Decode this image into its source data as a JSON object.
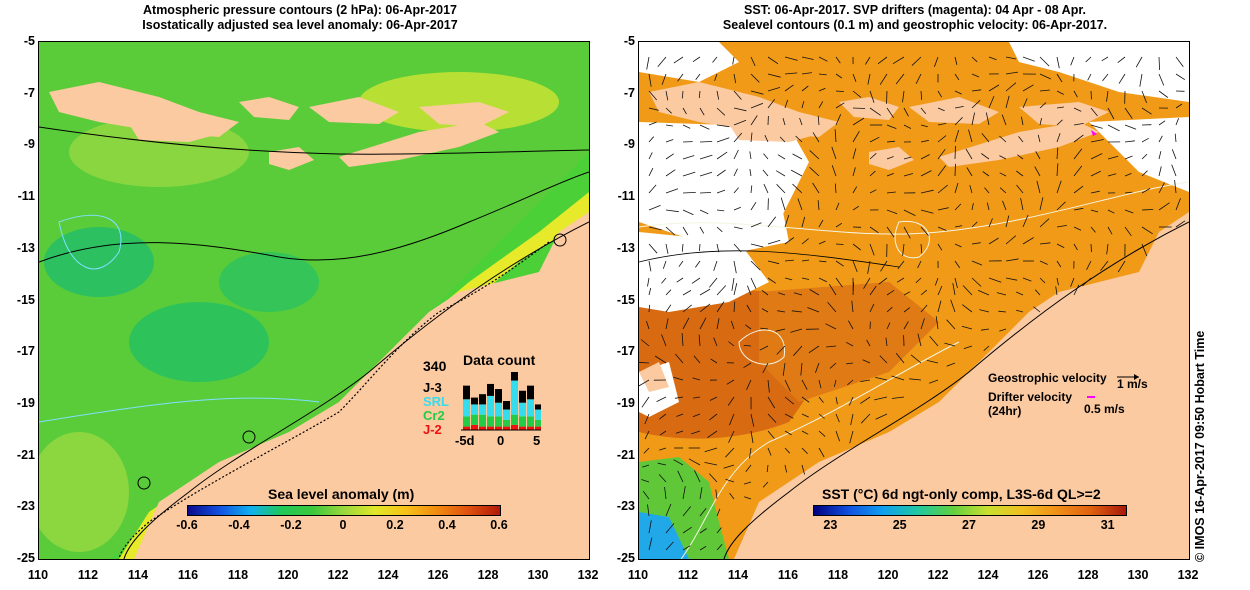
{
  "left_panel": {
    "title_line1": "Atmospheric pressure contours (2 hPa): 06-Apr-2017",
    "title_line2": "Isostatically adjusted sea level anomaly: 06-Apr-2017",
    "y_ticks": [
      "-5",
      "-7",
      "-9",
      "-11",
      "-13",
      "-15",
      "-17",
      "-19",
      "-21",
      "-23",
      "-25"
    ],
    "x_ticks": [
      "110",
      "112",
      "114",
      "116",
      "118",
      "120",
      "122",
      "124",
      "126",
      "128",
      "130",
      "132"
    ],
    "colorbar": {
      "title": "Sea level anomaly (m)",
      "tick_labels": [
        "-0.6",
        "-0.4",
        "-0.2",
        "0",
        "0.2",
        "0.4",
        "0.6"
      ],
      "range": [
        -0.6,
        0.6
      ]
    },
    "data_count": {
      "title": "Data count",
      "max_label": "340",
      "series": [
        {
          "name": "J-3",
          "color": "#000000"
        },
        {
          "name": "SRL",
          "color": "#33ddee"
        },
        {
          "name": "Cr2",
          "color": "#22cc44"
        },
        {
          "name": "J-2",
          "color": "#ee1111"
        }
      ],
      "x_labels": [
        "-5d",
        "0",
        "5"
      ],
      "bars": [
        {
          "J-2": 20,
          "Cr2": 60,
          "SRL": 100,
          "J-3": 80
        },
        {
          "J-2": 30,
          "Cr2": 60,
          "SRL": 60,
          "J-3": 40
        },
        {
          "J-2": 20,
          "Cr2": 70,
          "SRL": 60,
          "J-3": 60
        },
        {
          "J-2": 20,
          "Cr2": 60,
          "SRL": 120,
          "J-3": 70
        },
        {
          "J-2": 20,
          "Cr2": 60,
          "SRL": 80,
          "J-3": 80
        },
        {
          "J-2": 20,
          "Cr2": 40,
          "SRL": 60,
          "J-3": 50
        },
        {
          "J-2": 30,
          "Cr2": 60,
          "SRL": 200,
          "J-3": 50
        },
        {
          "J-2": 20,
          "Cr2": 60,
          "SRL": 80,
          "J-3": 70
        },
        {
          "J-2": 20,
          "Cr2": 60,
          "SRL": 100,
          "J-3": 80
        },
        {
          "J-2": 20,
          "Cr2": 40,
          "SRL": 60,
          "J-3": 30
        }
      ]
    }
  },
  "right_panel": {
    "title_line1": "SST: 06-Apr-2017. SVP drifters (magenta): 04 Apr - 08 Apr.",
    "title_line2": "Sealevel contours (0.1 m) and geostrophic velocity: 06-Apr-2017.",
    "y_ticks": [
      "-5",
      "-7",
      "-9",
      "-11",
      "-13",
      "-15",
      "-17",
      "-19",
      "-21",
      "-23",
      "-25"
    ],
    "x_ticks": [
      "110",
      "112",
      "114",
      "116",
      "118",
      "120",
      "122",
      "124",
      "126",
      "128",
      "130",
      "132"
    ],
    "legend": {
      "geostrophic_label": "Geostrophic velocity",
      "geostrophic_scale": "1 m/s",
      "drifter_label": "Drifter velocity",
      "drifter_period": "(24hr)",
      "drifter_scale": "0.5 m/s"
    },
    "colorbar": {
      "title": "SST (°C) 6d ngt-only comp, L3S-6d QL>=2",
      "tick_labels": [
        "23",
        "25",
        "27",
        "29",
        "31"
      ],
      "range": [
        22.5,
        31.5
      ]
    }
  },
  "side_text": "© IMOS 16-Apr-2017 09:50 Hobart Time",
  "colors": {
    "land": "#fccaa0",
    "sla_ramp": [
      "#0a0a8c",
      "#1050e0",
      "#10b0f0",
      "#20c858",
      "#3cc83c",
      "#9ad83c",
      "#e0e828",
      "#f8c018",
      "#f08a10",
      "#e05010",
      "#b01808"
    ],
    "sst_ramp": [
      "#000080",
      "#1050e0",
      "#10a0f0",
      "#20c8a0",
      "#60d040",
      "#c8e030",
      "#f0c020",
      "#f09018",
      "#e06010",
      "#a81808"
    ]
  }
}
